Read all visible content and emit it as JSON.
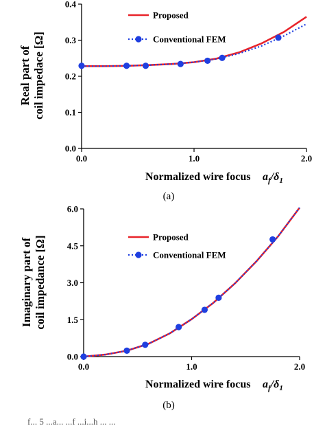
{
  "chart_data": [
    {
      "type": "line",
      "panel": "(a)",
      "ylabel_lines": [
        "Real part of",
        "coil impedace [Ω]"
      ],
      "xlabel": "Normalized wire focus",
      "xlabel_math": "a_f/δ_1",
      "xlim": [
        0.0,
        2.0
      ],
      "ylim": [
        0.0,
        0.4
      ],
      "xticks": [
        "0.0",
        "1.0",
        "2.0"
      ],
      "yticks": [
        "0.0",
        "0.1",
        "0.2",
        "0.3",
        "0.4"
      ],
      "legend_position": "top-right",
      "series": [
        {
          "name": "Proposed",
          "style": "solid",
          "color": "#e8232a",
          "x": [
            0.0,
            0.2,
            0.4,
            0.6,
            0.8,
            1.0,
            1.2,
            1.4,
            1.6,
            1.8,
            2.0
          ],
          "y": [
            0.228,
            0.228,
            0.229,
            0.231,
            0.234,
            0.239,
            0.249,
            0.266,
            0.291,
            0.323,
            0.365
          ]
        },
        {
          "name": "Conventional FEM",
          "style": "dotted-markers",
          "color": "#1f3fe0",
          "x": [
            0.0,
            0.2,
            0.4,
            0.6,
            0.8,
            1.0,
            1.2,
            1.4,
            1.6,
            1.8,
            2.0
          ],
          "y": [
            0.228,
            0.228,
            0.229,
            0.231,
            0.234,
            0.239,
            0.248,
            0.263,
            0.284,
            0.312,
            0.345
          ],
          "markers_x": [
            0.0,
            0.4,
            0.57,
            0.88,
            1.12,
            1.25,
            1.75
          ],
          "markers_y": [
            0.229,
            0.229,
            0.229,
            0.234,
            0.243,
            0.251,
            0.307
          ]
        }
      ]
    },
    {
      "type": "line",
      "panel": "(b)",
      "ylabel_lines": [
        "Imaginary part of",
        "coil impedance [Ω]"
      ],
      "xlabel": "Normalized wire focus",
      "xlabel_math": "a_f/δ_1",
      "xlim": [
        0.0,
        2.0
      ],
      "ylim": [
        0.0,
        6.0
      ],
      "xticks": [
        "0.0",
        "1.0",
        "2.0"
      ],
      "yticks": [
        "0.0",
        "1.5",
        "3.0",
        "4.5",
        "6.0"
      ],
      "legend_position": "top-left",
      "series": [
        {
          "name": "Proposed",
          "style": "solid",
          "color": "#e8232a",
          "x": [
            0.0,
            0.2,
            0.4,
            0.6,
            0.8,
            1.0,
            1.2,
            1.4,
            1.6,
            1.8,
            2.0
          ],
          "y": [
            0.0,
            0.08,
            0.24,
            0.52,
            0.95,
            1.52,
            2.18,
            2.97,
            3.87,
            4.88,
            6.05
          ]
        },
        {
          "name": "Conventional FEM",
          "style": "dotted-markers",
          "color": "#1f3fe0",
          "x": [
            0.0,
            0.2,
            0.4,
            0.6,
            0.8,
            1.0,
            1.2,
            1.4,
            1.6,
            1.8,
            2.0
          ],
          "y": [
            0.0,
            0.08,
            0.24,
            0.52,
            0.95,
            1.52,
            2.18,
            2.97,
            3.87,
            4.88,
            6.05
          ],
          "markers_x": [
            0.0,
            0.4,
            0.57,
            0.88,
            1.12,
            1.25,
            1.75
          ],
          "markers_y": [
            0.0,
            0.24,
            0.48,
            1.2,
            1.9,
            2.39,
            4.76
          ]
        }
      ]
    }
  ],
  "bottom_fragment": "f...      5   ...a...   ...f  ...i...h  ...   ..."
}
